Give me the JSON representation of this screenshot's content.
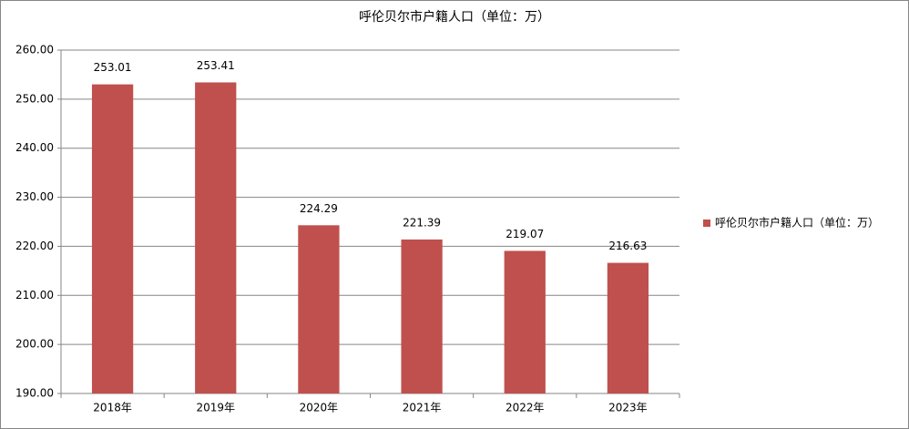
{
  "chart_data": {
    "type": "bar",
    "title": "呼伦贝尔市户籍人口（单位：万）",
    "categories": [
      "2018年",
      "2019年",
      "2020年",
      "2021年",
      "2022年",
      "2023年"
    ],
    "series": [
      {
        "name": "呼伦贝尔市户籍人口（单位：万）",
        "color": "#c0504d",
        "values": [
          253.01,
          253.41,
          224.29,
          221.39,
          219.07,
          216.63
        ]
      }
    ],
    "ylim": [
      190,
      260
    ],
    "yticks": [
      {
        "value": 190,
        "label": "190.00"
      },
      {
        "value": 200,
        "label": "200.00"
      },
      {
        "value": 210,
        "label": "210.00"
      },
      {
        "value": 220,
        "label": "220.00"
      },
      {
        "value": 230,
        "label": "230.00"
      },
      {
        "value": 240,
        "label": "240.00"
      },
      {
        "value": 250,
        "label": "250.00"
      },
      {
        "value": 260,
        "label": "260.00"
      }
    ],
    "grid": true,
    "legend": "right"
  }
}
